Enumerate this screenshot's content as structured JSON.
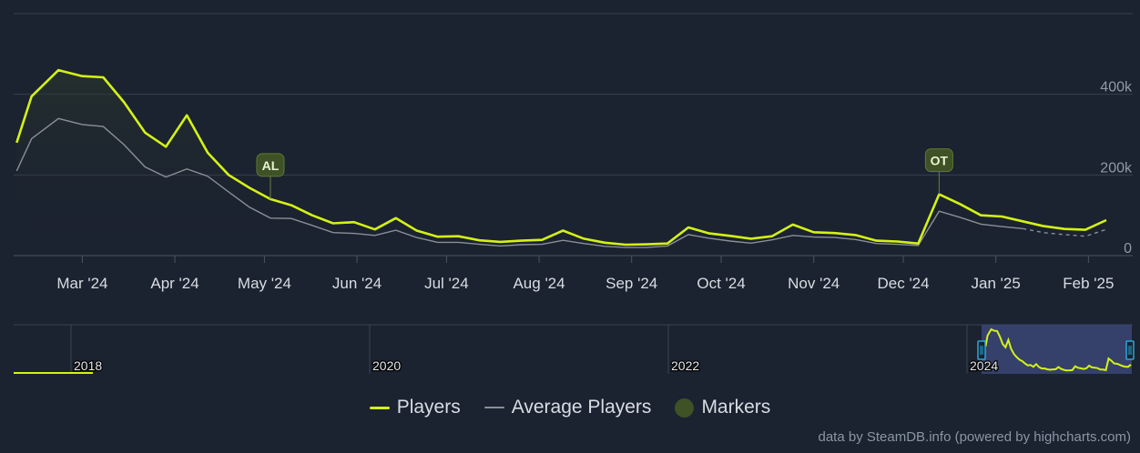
{
  "colors": {
    "background": "#1b2230",
    "players": "#d4f216",
    "average": "#8a8f96",
    "marker": "#3e5226",
    "grid": "#37414f",
    "text": "#c6d4df",
    "navigator_mask": "#3a4775",
    "navigator_handle": "#2aa8d8"
  },
  "chart_data": {
    "type": "line",
    "x": [
      "2024-02-08",
      "2024-02-13",
      "2024-02-22",
      "2024-03-01",
      "2024-03-08",
      "2024-03-15",
      "2024-03-22",
      "2024-03-29",
      "2024-04-05",
      "2024-04-12",
      "2024-04-19",
      "2024-04-26",
      "2024-05-03",
      "2024-05-10",
      "2024-05-17",
      "2024-05-24",
      "2024-05-31",
      "2024-06-07",
      "2024-06-14",
      "2024-06-21",
      "2024-06-28",
      "2024-07-05",
      "2024-07-12",
      "2024-07-19",
      "2024-07-26",
      "2024-08-02",
      "2024-08-09",
      "2024-08-16",
      "2024-08-23",
      "2024-08-30",
      "2024-09-06",
      "2024-09-13",
      "2024-09-20",
      "2024-09-27",
      "2024-10-04",
      "2024-10-11",
      "2024-10-18",
      "2024-10-25",
      "2024-11-01",
      "2024-11-08",
      "2024-11-15",
      "2024-11-22",
      "2024-11-29",
      "2024-12-06",
      "2024-12-13",
      "2024-12-20",
      "2024-12-27",
      "2025-01-03",
      "2025-01-10",
      "2025-01-17",
      "2025-01-24",
      "2025-01-31",
      "2025-02-07"
    ],
    "series": [
      {
        "name": "Players",
        "values": [
          280000,
          395000,
          460000,
          445000,
          442000,
          380000,
          305000,
          270000,
          348000,
          255000,
          200000,
          168000,
          140000,
          125000,
          100000,
          80000,
          83000,
          65000,
          93000,
          62000,
          47000,
          48000,
          38000,
          34000,
          37000,
          39000,
          62000,
          42000,
          32000,
          27000,
          28000,
          30000,
          70000,
          55000,
          49000,
          42000,
          48000,
          77000,
          58000,
          56000,
          51000,
          37000,
          35000,
          30000,
          152000,
          128000,
          100000,
          97000,
          85000,
          73000,
          66000,
          64000,
          88000
        ]
      },
      {
        "name": "Average Players",
        "values": [
          210000,
          290000,
          340000,
          325000,
          320000,
          275000,
          220000,
          195000,
          215000,
          197000,
          158000,
          120000,
          93000,
          92000,
          75000,
          57000,
          55000,
          50000,
          63000,
          45000,
          33000,
          33000,
          28000,
          24000,
          27000,
          28000,
          38000,
          30000,
          23000,
          20000,
          20000,
          24000,
          52000,
          43000,
          36000,
          31000,
          39000,
          50000,
          46000,
          45000,
          40000,
          30000,
          28000,
          25000,
          110000,
          95000,
          78000,
          72000,
          67000,
          57000,
          52000,
          48000,
          65000
        ]
      }
    ],
    "markers": [
      {
        "label": "AL",
        "x": "2024-05-03"
      },
      {
        "label": "OT",
        "x": "2024-12-13"
      }
    ],
    "x_ticks": [
      "Mar '24",
      "Apr '24",
      "May '24",
      "Jun '24",
      "Jul '24",
      "Aug '24",
      "Sep '24",
      "Oct '24",
      "Nov '24",
      "Dec '24",
      "Jan '25",
      "Feb '25"
    ],
    "y_ticks": [
      "0",
      "200k",
      "400k"
    ],
    "ylim": [
      0,
      600000
    ],
    "grid": true,
    "legend": [
      "Players",
      "Average Players",
      "Markers"
    ],
    "legend_placement": "bottom-center",
    "navigator": {
      "year_labels": [
        "2018",
        "2020",
        "2022",
        "2024"
      ]
    }
  },
  "credits": "data by SteamDB.info (powered by highcharts.com)"
}
